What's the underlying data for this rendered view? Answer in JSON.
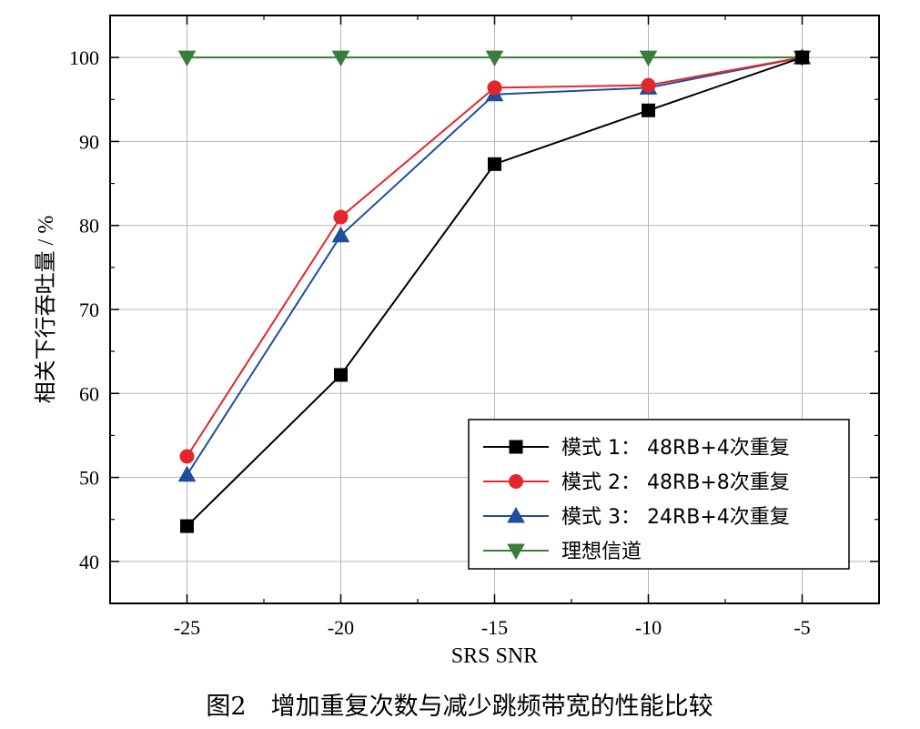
{
  "caption": "图2　增加重复次数与减少跳频带宽的性能比较",
  "chart_data": {
    "type": "line",
    "xlabel": "SRS SNR",
    "ylabel": "相关下行吞吐量 / %",
    "x": [
      -25,
      -20,
      -15,
      -10,
      -5
    ],
    "xlim": [
      -27.5,
      -2.5
    ],
    "ylim": [
      35,
      105
    ],
    "xticks": [
      -25,
      -20,
      -15,
      -10,
      -5
    ],
    "yticks": [
      40,
      50,
      60,
      70,
      80,
      90,
      100
    ],
    "grid": true,
    "legend_position": "bottom-right",
    "series": [
      {
        "name": "模式 1： 48RB+4次重复",
        "color": "#000000",
        "marker": "square",
        "values": [
          44.2,
          62.2,
          87.3,
          93.7,
          100
        ]
      },
      {
        "name": "模式 2： 48RB+8次重复",
        "color": "#e3262c",
        "marker": "circle",
        "values": [
          52.5,
          81.0,
          96.4,
          96.7,
          100
        ]
      },
      {
        "name": "模式 3： 24RB+4次重复",
        "color": "#1f4e9c",
        "marker": "triangle-up",
        "values": [
          50.3,
          78.8,
          95.6,
          96.4,
          100
        ]
      },
      {
        "name": "理想信道",
        "color": "#3a7d3a",
        "marker": "triangle-down",
        "values": [
          100,
          100,
          100,
          100,
          100
        ]
      }
    ]
  }
}
